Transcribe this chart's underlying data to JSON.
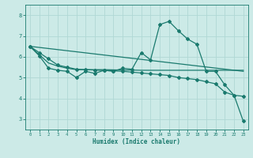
{
  "xlabel": "Humidex (Indice chaleur)",
  "ylabel": "",
  "background_color": "#cceae7",
  "grid_color": "#b0d8d4",
  "line_color": "#1a7a6e",
  "xlim": [
    -0.5,
    23.5
  ],
  "ylim": [
    2.5,
    8.5
  ],
  "xticks": [
    0,
    1,
    2,
    3,
    4,
    5,
    6,
    7,
    8,
    9,
    10,
    11,
    12,
    13,
    14,
    15,
    16,
    17,
    18,
    19,
    20,
    21,
    22,
    23
  ],
  "yticks": [
    3,
    4,
    5,
    6,
    7,
    8
  ],
  "series": [
    {
      "x": [
        0,
        1,
        2,
        3,
        4,
        5,
        6,
        7,
        8,
        9,
        10,
        11,
        12,
        13,
        14,
        15,
        16,
        17,
        18,
        19,
        20,
        21,
        22,
        23
      ],
      "y": [
        6.5,
        6.05,
        5.45,
        5.35,
        5.3,
        5.0,
        5.3,
        5.2,
        5.35,
        5.3,
        5.45,
        5.4,
        6.2,
        5.85,
        7.55,
        7.7,
        7.25,
        6.85,
        6.6,
        5.3,
        5.3,
        4.65,
        4.15,
        4.1
      ],
      "marker": "D",
      "markersize": 2.0,
      "linewidth": 0.9
    },
    {
      "x": [
        0,
        1,
        2,
        3,
        4,
        5,
        6,
        7,
        8,
        9,
        10,
        11,
        12,
        13,
        14,
        15,
        16,
        17,
        18,
        19,
        20,
        21,
        22,
        23
      ],
      "y": [
        6.5,
        6.1,
        5.7,
        5.55,
        5.45,
        5.38,
        5.38,
        5.38,
        5.38,
        5.37,
        5.36,
        5.36,
        5.35,
        5.35,
        5.35,
        5.35,
        5.35,
        5.35,
        5.35,
        5.35,
        5.35,
        5.35,
        5.35,
        5.35
      ],
      "marker": null,
      "markersize": 0,
      "linewidth": 0.9
    },
    {
      "x": [
        0,
        1,
        2,
        3,
        4,
        5,
        6,
        7,
        8,
        9,
        10,
        11,
        12,
        13,
        14,
        15,
        16,
        17,
        18,
        19,
        20,
        21,
        22,
        23
      ],
      "y": [
        6.5,
        6.2,
        5.9,
        5.6,
        5.5,
        5.4,
        5.38,
        5.36,
        5.34,
        5.32,
        5.3,
        5.26,
        5.22,
        5.18,
        5.14,
        5.1,
        5.0,
        4.95,
        4.9,
        4.8,
        4.7,
        4.3,
        4.15,
        2.9
      ],
      "marker": "D",
      "markersize": 2.0,
      "linewidth": 0.9
    },
    {
      "x": [
        0,
        23
      ],
      "y": [
        6.5,
        5.3
      ],
      "marker": null,
      "markersize": 0,
      "linewidth": 0.9
    }
  ]
}
